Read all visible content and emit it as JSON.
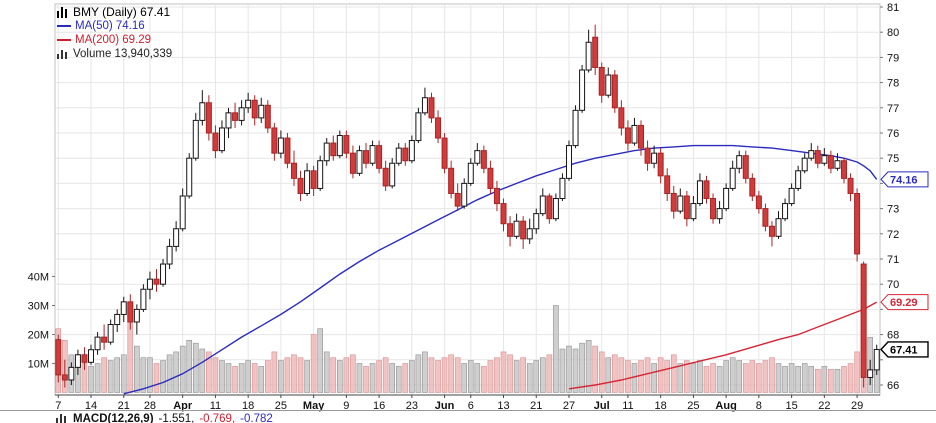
{
  "legend": {
    "symbol_label": "BMY (Daily) 67.41",
    "ma50_label": "MA(50) 74.16",
    "ma200_label": "MA(200) 69.29",
    "volume_label": "Volume 13,940,339"
  },
  "macd": {
    "label": "MACD(12,26,9)",
    "v1": "-1.551,",
    "v2": "-0.769,",
    "v3": "-0.782"
  },
  "colors": {
    "up_fill": "#ffffff",
    "up_stroke": "#151515",
    "down_fill": "#d13b3b",
    "down_stroke": "#a82424",
    "vol_up_fill": "#c3c3c3",
    "vol_up_stroke": "#909090",
    "vol_down_fill": "#eeb4b4",
    "vol_down_stroke": "#d88f8f",
    "ma50": "#2b2bc0",
    "ma200": "#d62535",
    "grid": "#e6e6e6",
    "frame": "#c2c2c2",
    "axis": "#444444",
    "text": "#1a1a1a",
    "last_tag": "#000000"
  },
  "chart_data": {
    "type": "candlestick",
    "title": "BMY (Daily)",
    "symbol": "BMY",
    "timeframe": "Daily",
    "last_price": 67.41,
    "ma50_value": 74.16,
    "ma200_value": 69.29,
    "last_volume": "13,940,339",
    "ylim": [
      65.6,
      81.2
    ],
    "price_grid": [
      66,
      67,
      68,
      69,
      70,
      71,
      72,
      73,
      74,
      75,
      76,
      77,
      78,
      79,
      80,
      81
    ],
    "price_labels": [
      81,
      80,
      79,
      78,
      77,
      76,
      75,
      73,
      72,
      71,
      70,
      68,
      66
    ],
    "volume_labels": [
      {
        "label": "40M",
        "m": 40
      },
      {
        "label": "30M",
        "m": 30
      },
      {
        "label": "20M",
        "m": 20
      },
      {
        "label": "10M",
        "m": 10
      }
    ],
    "tags": [
      {
        "text": "74.16",
        "value": 74.16,
        "color_key": "ma50",
        "bold": false
      },
      {
        "text": "69.29",
        "value": 69.29,
        "color_key": "ma200",
        "bold": false
      },
      {
        "text": "67.41",
        "value": 67.41,
        "color_key": "last_tag",
        "bold": true
      }
    ],
    "x_ticks": [
      {
        "i": 0,
        "label": "7",
        "bold": false
      },
      {
        "i": 5,
        "label": "14",
        "bold": false
      },
      {
        "i": 10,
        "label": "21",
        "bold": false
      },
      {
        "i": 14,
        "label": "28",
        "bold": false
      },
      {
        "i": 19,
        "label": "Apr",
        "bold": true
      },
      {
        "i": 24,
        "label": "11",
        "bold": false
      },
      {
        "i": 29,
        "label": "18",
        "bold": false
      },
      {
        "i": 34,
        "label": "25",
        "bold": false
      },
      {
        "i": 39,
        "label": "May",
        "bold": true
      },
      {
        "i": 44,
        "label": "9",
        "bold": false
      },
      {
        "i": 49,
        "label": "16",
        "bold": false
      },
      {
        "i": 54,
        "label": "23",
        "bold": false
      },
      {
        "i": 59,
        "label": "Jun",
        "bold": true
      },
      {
        "i": 63,
        "label": "6",
        "bold": false
      },
      {
        "i": 68,
        "label": "13",
        "bold": false
      },
      {
        "i": 73,
        "label": "21",
        "bold": false
      },
      {
        "i": 78,
        "label": "27",
        "bold": false
      },
      {
        "i": 83,
        "label": "Jul",
        "bold": true
      },
      {
        "i": 87,
        "label": "11",
        "bold": false
      },
      {
        "i": 92,
        "label": "18",
        "bold": false
      },
      {
        "i": 97,
        "label": "25",
        "bold": false
      },
      {
        "i": 102,
        "label": "Aug",
        "bold": true
      },
      {
        "i": 107,
        "label": "8",
        "bold": false
      },
      {
        "i": 112,
        "label": "15",
        "bold": false
      },
      {
        "i": 117,
        "label": "22",
        "bold": false
      },
      {
        "i": 122,
        "label": "29",
        "bold": false
      }
    ],
    "candles": [
      [
        67.8,
        68.0,
        66.1,
        66.4,
        22
      ],
      [
        66.4,
        67.0,
        65.9,
        66.2,
        18
      ],
      [
        66.2,
        66.9,
        66.0,
        66.7,
        13
      ],
      [
        66.7,
        67.4,
        66.4,
        67.2,
        11
      ],
      [
        67.2,
        67.5,
        66.6,
        66.9,
        10
      ],
      [
        66.9,
        67.6,
        66.8,
        67.4,
        9
      ],
      [
        67.4,
        68.1,
        67.2,
        67.9,
        10
      ],
      [
        67.9,
        68.4,
        67.4,
        67.7,
        12
      ],
      [
        67.7,
        68.6,
        67.6,
        68.4,
        11
      ],
      [
        68.4,
        69.0,
        68.1,
        68.8,
        12
      ],
      [
        68.8,
        69.5,
        68.5,
        69.3,
        13
      ],
      [
        69.3,
        69.6,
        68.2,
        68.5,
        28
      ],
      [
        68.5,
        69.2,
        68.0,
        69.0,
        16
      ],
      [
        69.0,
        70.0,
        68.9,
        69.8,
        12
      ],
      [
        69.8,
        70.5,
        69.4,
        70.2,
        12
      ],
      [
        70.2,
        70.6,
        69.7,
        70.0,
        10
      ],
      [
        70.0,
        71.0,
        69.9,
        70.8,
        11
      ],
      [
        70.8,
        71.8,
        70.6,
        71.5,
        13
      ],
      [
        71.5,
        72.5,
        71.3,
        72.2,
        14
      ],
      [
        72.2,
        73.8,
        72.1,
        73.5,
        16
      ],
      [
        73.5,
        75.2,
        73.4,
        75.0,
        18
      ],
      [
        75.0,
        76.8,
        74.9,
        76.5,
        17
      ],
      [
        76.5,
        77.7,
        76.3,
        77.2,
        15
      ],
      [
        77.2,
        77.5,
        75.7,
        76.0,
        14
      ],
      [
        76.0,
        76.3,
        75.0,
        75.3,
        12
      ],
      [
        75.3,
        76.5,
        75.2,
        76.2,
        11
      ],
      [
        76.2,
        77.0,
        75.8,
        76.8,
        10
      ],
      [
        76.8,
        77.2,
        76.2,
        76.5,
        9
      ],
      [
        76.5,
        77.3,
        76.3,
        77.0,
        10
      ],
      [
        77.0,
        77.6,
        76.8,
        77.3,
        11
      ],
      [
        77.3,
        77.5,
        76.3,
        76.6,
        10
      ],
      [
        76.6,
        77.4,
        76.4,
        77.1,
        9
      ],
      [
        77.1,
        77.3,
        76.0,
        76.2,
        11
      ],
      [
        76.2,
        76.4,
        74.9,
        75.2,
        14
      ],
      [
        75.2,
        76.1,
        75.0,
        75.8,
        11
      ],
      [
        75.8,
        76.0,
        74.6,
        74.8,
        12
      ],
      [
        74.8,
        75.3,
        73.9,
        74.2,
        13
      ],
      [
        74.2,
        74.5,
        73.3,
        73.6,
        12
      ],
      [
        73.6,
        74.8,
        73.5,
        74.5,
        11
      ],
      [
        74.5,
        74.7,
        73.5,
        73.8,
        20
      ],
      [
        73.8,
        75.1,
        73.7,
        74.9,
        22
      ],
      [
        74.9,
        75.8,
        74.7,
        75.6,
        14
      ],
      [
        75.6,
        75.9,
        74.9,
        75.1,
        12
      ],
      [
        75.1,
        76.1,
        75.0,
        75.9,
        11
      ],
      [
        75.9,
        76.1,
        75.0,
        75.2,
        12
      ],
      [
        75.2,
        75.5,
        74.2,
        74.4,
        13
      ],
      [
        74.4,
        75.5,
        74.3,
        75.3,
        10
      ],
      [
        75.3,
        75.6,
        74.6,
        74.8,
        9
      ],
      [
        74.8,
        75.7,
        74.7,
        75.5,
        10
      ],
      [
        75.5,
        75.7,
        74.4,
        74.6,
        11
      ],
      [
        74.6,
        74.9,
        73.7,
        73.9,
        12
      ],
      [
        73.9,
        75.0,
        73.8,
        74.8,
        10
      ],
      [
        74.8,
        75.6,
        74.7,
        75.4,
        9
      ],
      [
        75.4,
        75.6,
        74.7,
        74.9,
        10
      ],
      [
        74.9,
        75.9,
        74.8,
        75.7,
        11
      ],
      [
        75.7,
        77.0,
        75.6,
        76.8,
        13
      ],
      [
        76.8,
        77.8,
        76.7,
        77.4,
        14
      ],
      [
        77.4,
        77.6,
        76.4,
        76.6,
        12
      ],
      [
        76.6,
        76.9,
        75.6,
        75.8,
        11
      ],
      [
        75.8,
        76.0,
        74.4,
        74.6,
        12
      ],
      [
        74.6,
        74.9,
        73.4,
        73.6,
        13
      ],
      [
        73.6,
        74.0,
        72.9,
        73.1,
        12
      ],
      [
        73.1,
        74.2,
        73.0,
        74.0,
        10
      ],
      [
        74.0,
        75.0,
        73.9,
        74.8,
        11
      ],
      [
        74.8,
        75.6,
        74.7,
        75.3,
        10
      ],
      [
        75.3,
        75.5,
        74.4,
        74.6,
        9
      ],
      [
        74.6,
        74.9,
        73.6,
        73.8,
        11
      ],
      [
        73.8,
        74.1,
        72.9,
        73.2,
        12
      ],
      [
        73.2,
        73.4,
        72.1,
        72.4,
        14
      ],
      [
        72.4,
        72.7,
        71.5,
        71.9,
        13
      ],
      [
        71.9,
        72.8,
        71.8,
        72.5,
        11
      ],
      [
        72.5,
        72.7,
        71.4,
        71.8,
        12
      ],
      [
        71.8,
        72.6,
        71.6,
        72.2,
        10
      ],
      [
        72.2,
        73.0,
        72.0,
        72.8,
        11
      ],
      [
        72.8,
        73.8,
        72.7,
        73.5,
        12
      ],
      [
        73.5,
        73.6,
        72.4,
        72.6,
        13
      ],
      [
        72.6,
        73.6,
        72.5,
        73.4,
        30
      ],
      [
        73.4,
        74.4,
        73.3,
        74.2,
        15
      ],
      [
        74.2,
        75.7,
        74.1,
        75.5,
        16
      ],
      [
        75.5,
        77.1,
        75.4,
        76.9,
        15
      ],
      [
        76.9,
        78.7,
        76.8,
        78.5,
        17
      ],
      [
        78.5,
        80.1,
        78.4,
        79.6,
        18
      ],
      [
        79.8,
        80.3,
        78.3,
        78.6,
        16
      ],
      [
        78.6,
        78.8,
        77.2,
        77.5,
        14
      ],
      [
        77.5,
        78.6,
        77.4,
        78.3,
        12
      ],
      [
        78.3,
        78.5,
        76.8,
        77.0,
        13
      ],
      [
        77.0,
        77.3,
        75.9,
        76.2,
        12
      ],
      [
        76.2,
        76.5,
        75.3,
        75.6,
        11
      ],
      [
        75.6,
        76.6,
        75.5,
        76.3,
        10
      ],
      [
        76.3,
        76.5,
        75.1,
        75.4,
        11
      ],
      [
        75.4,
        75.7,
        74.5,
        74.8,
        12
      ],
      [
        74.8,
        75.5,
        74.6,
        75.2,
        10
      ],
      [
        75.2,
        75.4,
        74.0,
        74.3,
        12
      ],
      [
        74.3,
        74.6,
        73.3,
        73.6,
        11
      ],
      [
        73.6,
        73.9,
        72.6,
        72.9,
        13
      ],
      [
        72.9,
        73.8,
        72.8,
        73.5,
        10
      ],
      [
        73.5,
        73.7,
        72.3,
        72.6,
        11
      ],
      [
        72.6,
        73.5,
        72.5,
        73.2,
        10
      ],
      [
        73.2,
        74.4,
        73.1,
        74.1,
        11
      ],
      [
        74.1,
        74.3,
        73.2,
        73.4,
        9
      ],
      [
        73.4,
        73.6,
        72.4,
        72.6,
        10
      ],
      [
        72.6,
        73.3,
        72.4,
        73.0,
        9
      ],
      [
        73.0,
        74.0,
        72.9,
        73.8,
        11
      ],
      [
        73.8,
        74.9,
        73.7,
        74.6,
        12
      ],
      [
        74.6,
        75.3,
        74.4,
        75.1,
        11
      ],
      [
        75.1,
        75.3,
        74.0,
        74.2,
        10
      ],
      [
        74.2,
        74.4,
        73.3,
        73.5,
        11
      ],
      [
        73.5,
        73.7,
        72.8,
        73.0,
        10
      ],
      [
        73.0,
        73.2,
        72.1,
        72.3,
        11
      ],
      [
        72.3,
        72.5,
        71.5,
        71.9,
        12
      ],
      [
        71.9,
        72.9,
        71.8,
        72.6,
        10
      ],
      [
        72.6,
        73.4,
        72.5,
        73.2,
        9
      ],
      [
        73.2,
        74.0,
        73.1,
        73.8,
        10
      ],
      [
        73.8,
        74.7,
        73.7,
        74.5,
        9
      ],
      [
        74.5,
        75.2,
        74.4,
        75.0,
        10
      ],
      [
        75.0,
        75.6,
        74.9,
        75.3,
        9
      ],
      [
        75.3,
        75.5,
        74.6,
        74.8,
        8
      ],
      [
        74.8,
        75.4,
        74.7,
        75.1,
        9
      ],
      [
        75.1,
        75.3,
        74.4,
        74.6,
        8
      ],
      [
        74.6,
        75.2,
        74.5,
        74.9,
        8
      ],
      [
        74.9,
        75.0,
        74.0,
        74.2,
        9
      ],
      [
        74.2,
        74.4,
        73.3,
        73.6,
        10
      ],
      [
        73.6,
        73.8,
        70.9,
        71.2,
        14
      ],
      [
        70.8,
        70.9,
        65.9,
        66.3,
        35
      ],
      [
        66.3,
        67.0,
        66.0,
        66.6,
        19
      ],
      [
        66.6,
        67.6,
        66.4,
        67.41,
        13
      ]
    ],
    "ma50_points": [
      [
        10,
        65.65
      ],
      [
        13,
        65.85
      ],
      [
        16,
        66.1
      ],
      [
        19,
        66.45
      ],
      [
        22,
        66.9
      ],
      [
        25,
        67.4
      ],
      [
        28,
        67.9
      ],
      [
        31,
        68.35
      ],
      [
        34,
        68.8
      ],
      [
        37,
        69.3
      ],
      [
        40,
        69.85
      ],
      [
        43,
        70.4
      ],
      [
        46,
        70.9
      ],
      [
        49,
        71.35
      ],
      [
        52,
        71.75
      ],
      [
        55,
        72.15
      ],
      [
        58,
        72.55
      ],
      [
        61,
        72.95
      ],
      [
        64,
        73.35
      ],
      [
        67,
        73.7
      ],
      [
        70,
        74.0
      ],
      [
        73,
        74.3
      ],
      [
        76,
        74.55
      ],
      [
        79,
        74.8
      ],
      [
        82,
        75.0
      ],
      [
        85,
        75.15
      ],
      [
        88,
        75.3
      ],
      [
        91,
        75.4
      ],
      [
        94,
        75.45
      ],
      [
        97,
        75.5
      ],
      [
        100,
        75.5
      ],
      [
        103,
        75.5
      ],
      [
        106,
        75.45
      ],
      [
        109,
        75.4
      ],
      [
        112,
        75.3
      ],
      [
        115,
        75.2
      ],
      [
        118,
        75.1
      ],
      [
        120,
        75.0
      ],
      [
        122,
        74.85
      ],
      [
        123,
        74.7
      ],
      [
        124,
        74.5
      ],
      [
        125,
        74.16
      ]
    ],
    "ma200_points": [
      [
        78,
        65.85
      ],
      [
        82,
        66.0
      ],
      [
        86,
        66.2
      ],
      [
        90,
        66.45
      ],
      [
        94,
        66.7
      ],
      [
        98,
        66.95
      ],
      [
        102,
        67.2
      ],
      [
        106,
        67.5
      ],
      [
        110,
        67.8
      ],
      [
        113,
        68.0
      ],
      [
        116,
        68.3
      ],
      [
        119,
        68.6
      ],
      [
        121,
        68.8
      ],
      [
        123,
        69.0
      ],
      [
        125,
        69.29
      ]
    ]
  }
}
